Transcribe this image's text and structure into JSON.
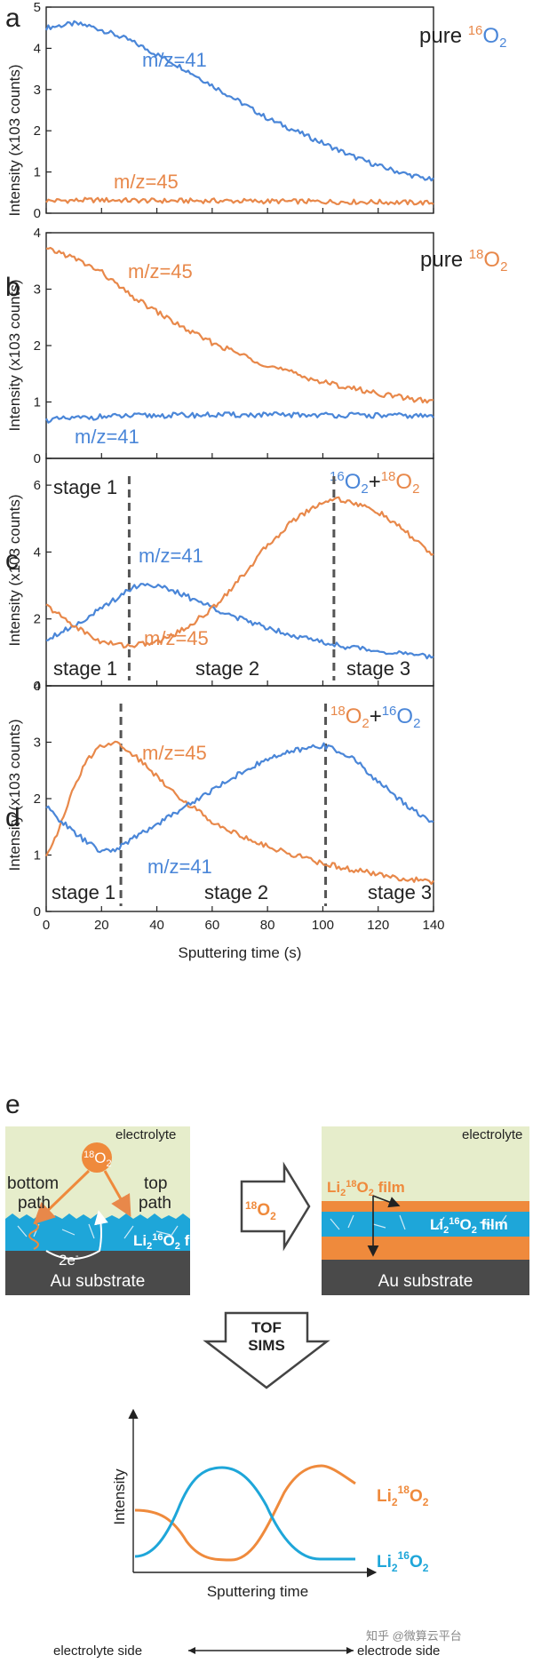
{
  "colors": {
    "blue": "#4a86d8",
    "orange": "#e8884a",
    "cyan": "#1ea6d9",
    "orange_film": "#ef8a3c",
    "electrolyte_bg": "#e6edcb",
    "substrate": "#4a4a4a"
  },
  "chart_data": [
    {
      "type": "line",
      "panel": "a",
      "title": "pure 16O2",
      "title_parts": [
        "pure ",
        "16",
        "O",
        "2"
      ],
      "xlabel": "Sputtering time (s)",
      "ylabel": "Intensity (x103 counts)",
      "xlim": [
        0,
        140
      ],
      "ylim": [
        0,
        5
      ],
      "yticks": [
        "0",
        "1",
        "2",
        "3",
        "4",
        "5"
      ],
      "series": [
        {
          "name": "m/z=41",
          "color": "blue",
          "x": [
            0,
            5,
            10,
            15,
            20,
            30,
            40,
            50,
            60,
            70,
            80,
            90,
            100,
            110,
            120,
            130,
            140
          ],
          "y": [
            4.5,
            4.55,
            4.6,
            4.55,
            4.45,
            4.2,
            3.85,
            3.5,
            3.1,
            2.7,
            2.3,
            2.0,
            1.7,
            1.4,
            1.15,
            0.95,
            0.8
          ]
        },
        {
          "name": "m/z=45",
          "color": "orange",
          "x": [
            0,
            20,
            40,
            60,
            80,
            100,
            120,
            140
          ],
          "y": [
            0.3,
            0.32,
            0.3,
            0.3,
            0.29,
            0.28,
            0.27,
            0.25
          ]
        }
      ]
    },
    {
      "type": "line",
      "panel": "b",
      "title": "pure 18O2",
      "title_parts": [
        "pure ",
        "18",
        "O",
        "2"
      ],
      "xlabel": "Sputtering time (s)",
      "ylabel": "Intensity (x103 counts)",
      "xlim": [
        0,
        140
      ],
      "ylim": [
        0,
        4
      ],
      "yticks": [
        "0",
        "1",
        "2",
        "3",
        "4"
      ],
      "series": [
        {
          "name": "m/z=45",
          "color": "orange",
          "x": [
            0,
            5,
            10,
            20,
            30,
            40,
            50,
            60,
            70,
            80,
            90,
            100,
            110,
            120,
            130,
            140
          ],
          "y": [
            3.7,
            3.65,
            3.55,
            3.3,
            2.9,
            2.6,
            2.3,
            2.05,
            1.85,
            1.65,
            1.5,
            1.35,
            1.25,
            1.15,
            1.07,
            1.0
          ]
        },
        {
          "name": "m/z=41",
          "color": "blue",
          "x": [
            0,
            20,
            40,
            60,
            80,
            100,
            120,
            140
          ],
          "y": [
            0.68,
            0.74,
            0.76,
            0.77,
            0.77,
            0.77,
            0.76,
            0.75
          ]
        }
      ]
    },
    {
      "type": "line",
      "panel": "c",
      "title": "16O2+18O2",
      "title_parts": [
        "16",
        "O",
        "2",
        "+",
        "18",
        "O",
        "2"
      ],
      "xlabel": "Sputtering time (s)",
      "ylabel": "Intensity (x103 counts)",
      "xlim": [
        0,
        140
      ],
      "ylim": [
        0,
        6.8
      ],
      "yticks": [
        "0",
        "2",
        "4",
        "6"
      ],
      "ytick_values": [
        0,
        2,
        4,
        6
      ],
      "stage_lines_x": [
        30,
        104
      ],
      "stages_top": [
        "stage 1"
      ],
      "stages_bottom": [
        "stage 1",
        "stage 2",
        "stage 3"
      ],
      "series": [
        {
          "name": "m/z=41",
          "color": "blue",
          "x": [
            0,
            10,
            20,
            30,
            35,
            40,
            50,
            60,
            70,
            80,
            90,
            100,
            110,
            120,
            130,
            140
          ],
          "y": [
            1.4,
            1.8,
            2.3,
            2.9,
            3.05,
            3.0,
            2.7,
            2.35,
            2.0,
            1.75,
            1.5,
            1.3,
            1.15,
            1.05,
            0.95,
            0.85
          ]
        },
        {
          "name": "m/z=45",
          "color": "orange",
          "x": [
            0,
            10,
            20,
            30,
            40,
            50,
            60,
            70,
            80,
            90,
            100,
            105,
            110,
            120,
            130,
            140
          ],
          "y": [
            2.4,
            1.8,
            1.3,
            1.2,
            1.3,
            1.7,
            2.3,
            3.2,
            4.2,
            5.0,
            5.5,
            5.6,
            5.5,
            5.2,
            4.6,
            3.9
          ]
        }
      ]
    },
    {
      "type": "line",
      "panel": "d",
      "title": "18O2+16O2",
      "title_parts": [
        "18",
        "O",
        "2",
        "+",
        "16",
        "O",
        "2"
      ],
      "xlabel": "Sputtering time (s)",
      "ylabel": "Intensity (x103 counts)",
      "xlim": [
        0,
        140
      ],
      "ylim": [
        0,
        4
      ],
      "yticks": [
        "0",
        "1",
        "2",
        "3",
        "4"
      ],
      "xticks": [
        "0",
        "20",
        "40",
        "60",
        "80",
        "100",
        "120",
        "140"
      ],
      "stage_lines_x": [
        27,
        101
      ],
      "stages_bottom": [
        "stage 1",
        "stage 2",
        "stage 3"
      ],
      "series": [
        {
          "name": "m/z=45",
          "color": "orange",
          "x": [
            0,
            5,
            10,
            15,
            20,
            25,
            30,
            40,
            50,
            60,
            70,
            80,
            90,
            100,
            110,
            120,
            130,
            140
          ],
          "y": [
            1.0,
            1.5,
            2.2,
            2.7,
            2.95,
            3.0,
            2.85,
            2.4,
            1.95,
            1.6,
            1.35,
            1.15,
            1.0,
            0.85,
            0.75,
            0.65,
            0.58,
            0.52
          ]
        },
        {
          "name": "m/z=41",
          "color": "blue",
          "x": [
            0,
            10,
            20,
            25,
            30,
            40,
            50,
            60,
            70,
            80,
            90,
            100,
            110,
            120,
            130,
            140
          ],
          "y": [
            1.85,
            1.4,
            1.05,
            1.1,
            1.25,
            1.55,
            1.85,
            2.15,
            2.45,
            2.7,
            2.85,
            2.95,
            2.75,
            2.3,
            1.9,
            1.55
          ]
        }
      ]
    }
  ],
  "panel_e": {
    "label": "e",
    "left": {
      "electrolyte": "electrolyte",
      "molecule": [
        "18",
        "O",
        "2"
      ],
      "bottom_path": [
        "bottom",
        "path"
      ],
      "top_path": [
        "top",
        "path"
      ],
      "film": [
        "Li",
        "2",
        "16",
        "O",
        "2",
        " film"
      ],
      "electrons": [
        "2e",
        "-"
      ],
      "substrate": "Au substrate"
    },
    "arrow_label": [
      "18",
      "O",
      "2"
    ],
    "right": {
      "electrolyte": "electrolyte",
      "top_film": [
        "Li",
        "2",
        "18",
        "O",
        "2",
        " film"
      ],
      "mid_film": [
        "Li",
        "2",
        "16",
        "O",
        "2",
        " film"
      ],
      "substrate": "Au substrate"
    },
    "tof_label": [
      "TOF",
      "SIMS"
    ],
    "schematic": {
      "ylabel": "Intensity",
      "xlabel": "Sputtering time",
      "legend_18": [
        "Li",
        "2",
        "18",
        "O",
        "2"
      ],
      "legend_16": [
        "Li",
        "2",
        "16",
        "O",
        "2"
      ],
      "left_side": "electrolyte side",
      "right_side": "electrode side"
    }
  },
  "watermark": "知乎 @微算云平台"
}
